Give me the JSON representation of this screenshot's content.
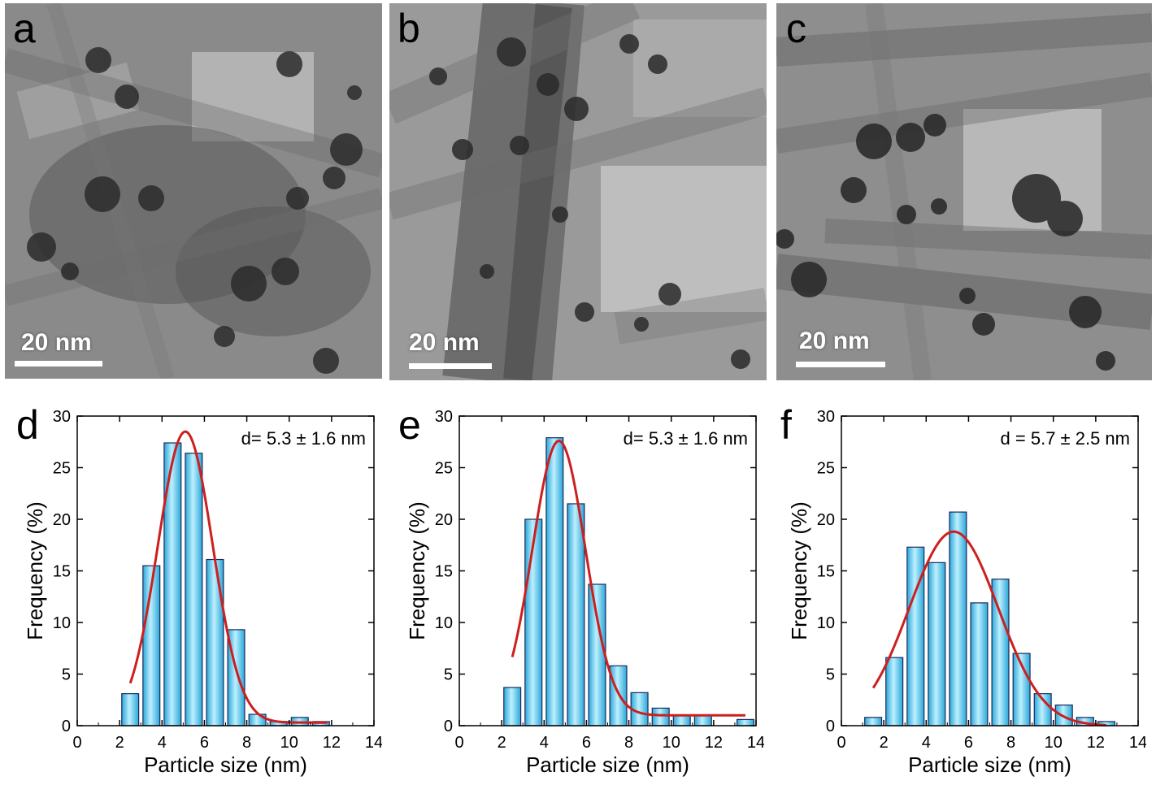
{
  "colors": {
    "bar_fill_light": "#bdf0ff",
    "bar_fill_dark": "#2aa6d8",
    "bar_stroke": "#1a2a5a",
    "fit_curve": "#cc1f1f",
    "scalebar": "#ffffff"
  },
  "tem_panels": [
    {
      "letter": "a",
      "scalebar_label": "20 nm"
    },
    {
      "letter": "b",
      "scalebar_label": "20 nm"
    },
    {
      "letter": "c",
      "scalebar_label": "20 nm"
    }
  ],
  "chart_data": [
    {
      "type": "bar",
      "panel_letter": "d",
      "annotation": "d= 5.3 ± 1.6 nm",
      "xlabel": "Particle size (nm)",
      "ylabel": "Frequency (%)",
      "xlim": [
        0,
        14
      ],
      "ylim": [
        0,
        30
      ],
      "xticks": [
        "0",
        "2",
        "4",
        "6",
        "8",
        "10",
        "12",
        "14"
      ],
      "yticks": [
        "0",
        "5",
        "10",
        "15",
        "20",
        "25",
        "30"
      ],
      "bin_width": 0.8,
      "x": [
        2.5,
        3.5,
        4.5,
        5.5,
        6.5,
        7.5,
        8.5,
        9.5,
        10.5,
        11.5
      ],
      "values": [
        3.1,
        15.5,
        27.4,
        26.4,
        16.1,
        9.3,
        1.1,
        0.4,
        0.8,
        0.4
      ],
      "fit": {
        "center": 5.1,
        "sigma": 1.3,
        "amplitude": 28.2,
        "baseline": 0.3,
        "x_range": [
          2.5,
          11.8
        ]
      }
    },
    {
      "type": "bar",
      "panel_letter": "e",
      "annotation": "d= 5.3 ± 1.6 nm",
      "xlabel": "Particle size (nm)",
      "ylabel": "Frequency (%)",
      "xlim": [
        0,
        14
      ],
      "ylim": [
        0,
        30
      ],
      "xticks": [
        "0",
        "2",
        "4",
        "6",
        "8",
        "10",
        "12",
        "14"
      ],
      "yticks": [
        "0",
        "5",
        "10",
        "15",
        "20",
        "25",
        "30"
      ],
      "bin_width": 0.8,
      "x": [
        2.5,
        3.5,
        4.5,
        5.5,
        6.5,
        7.5,
        8.5,
        9.5,
        10.5,
        11.5,
        13.5
      ],
      "values": [
        3.7,
        20.0,
        27.9,
        21.5,
        13.7,
        5.8,
        3.2,
        1.7,
        1.0,
        1.0,
        0.6
      ],
      "fit": {
        "center": 4.7,
        "sigma": 1.25,
        "amplitude": 26.6,
        "baseline": 1.0,
        "x_range": [
          2.5,
          13.5
        ]
      }
    },
    {
      "type": "bar",
      "panel_letter": "f",
      "annotation": "d = 5.7 ± 2.5 nm",
      "xlabel": "Particle size (nm)",
      "ylabel": "Frequency (%)",
      "xlim": [
        0,
        14
      ],
      "ylim": [
        0,
        30
      ],
      "xticks": [
        "0",
        "2",
        "4",
        "6",
        "8",
        "10",
        "12",
        "14"
      ],
      "yticks": [
        "0",
        "5",
        "10",
        "15",
        "20",
        "25",
        "30"
      ],
      "bin_width": 0.8,
      "x": [
        1.5,
        2.5,
        3.5,
        4.5,
        5.5,
        6.5,
        7.5,
        8.5,
        9.5,
        10.5,
        11.5,
        12.5
      ],
      "values": [
        0.8,
        6.6,
        17.3,
        15.8,
        20.7,
        11.9,
        14.2,
        7.0,
        3.1,
        2.0,
        0.8,
        0.4
      ],
      "fit": {
        "center": 5.3,
        "sigma": 2.1,
        "amplitude": 18.8,
        "baseline": 0.0,
        "x_range": [
          1.5,
          12.5
        ]
      }
    }
  ]
}
